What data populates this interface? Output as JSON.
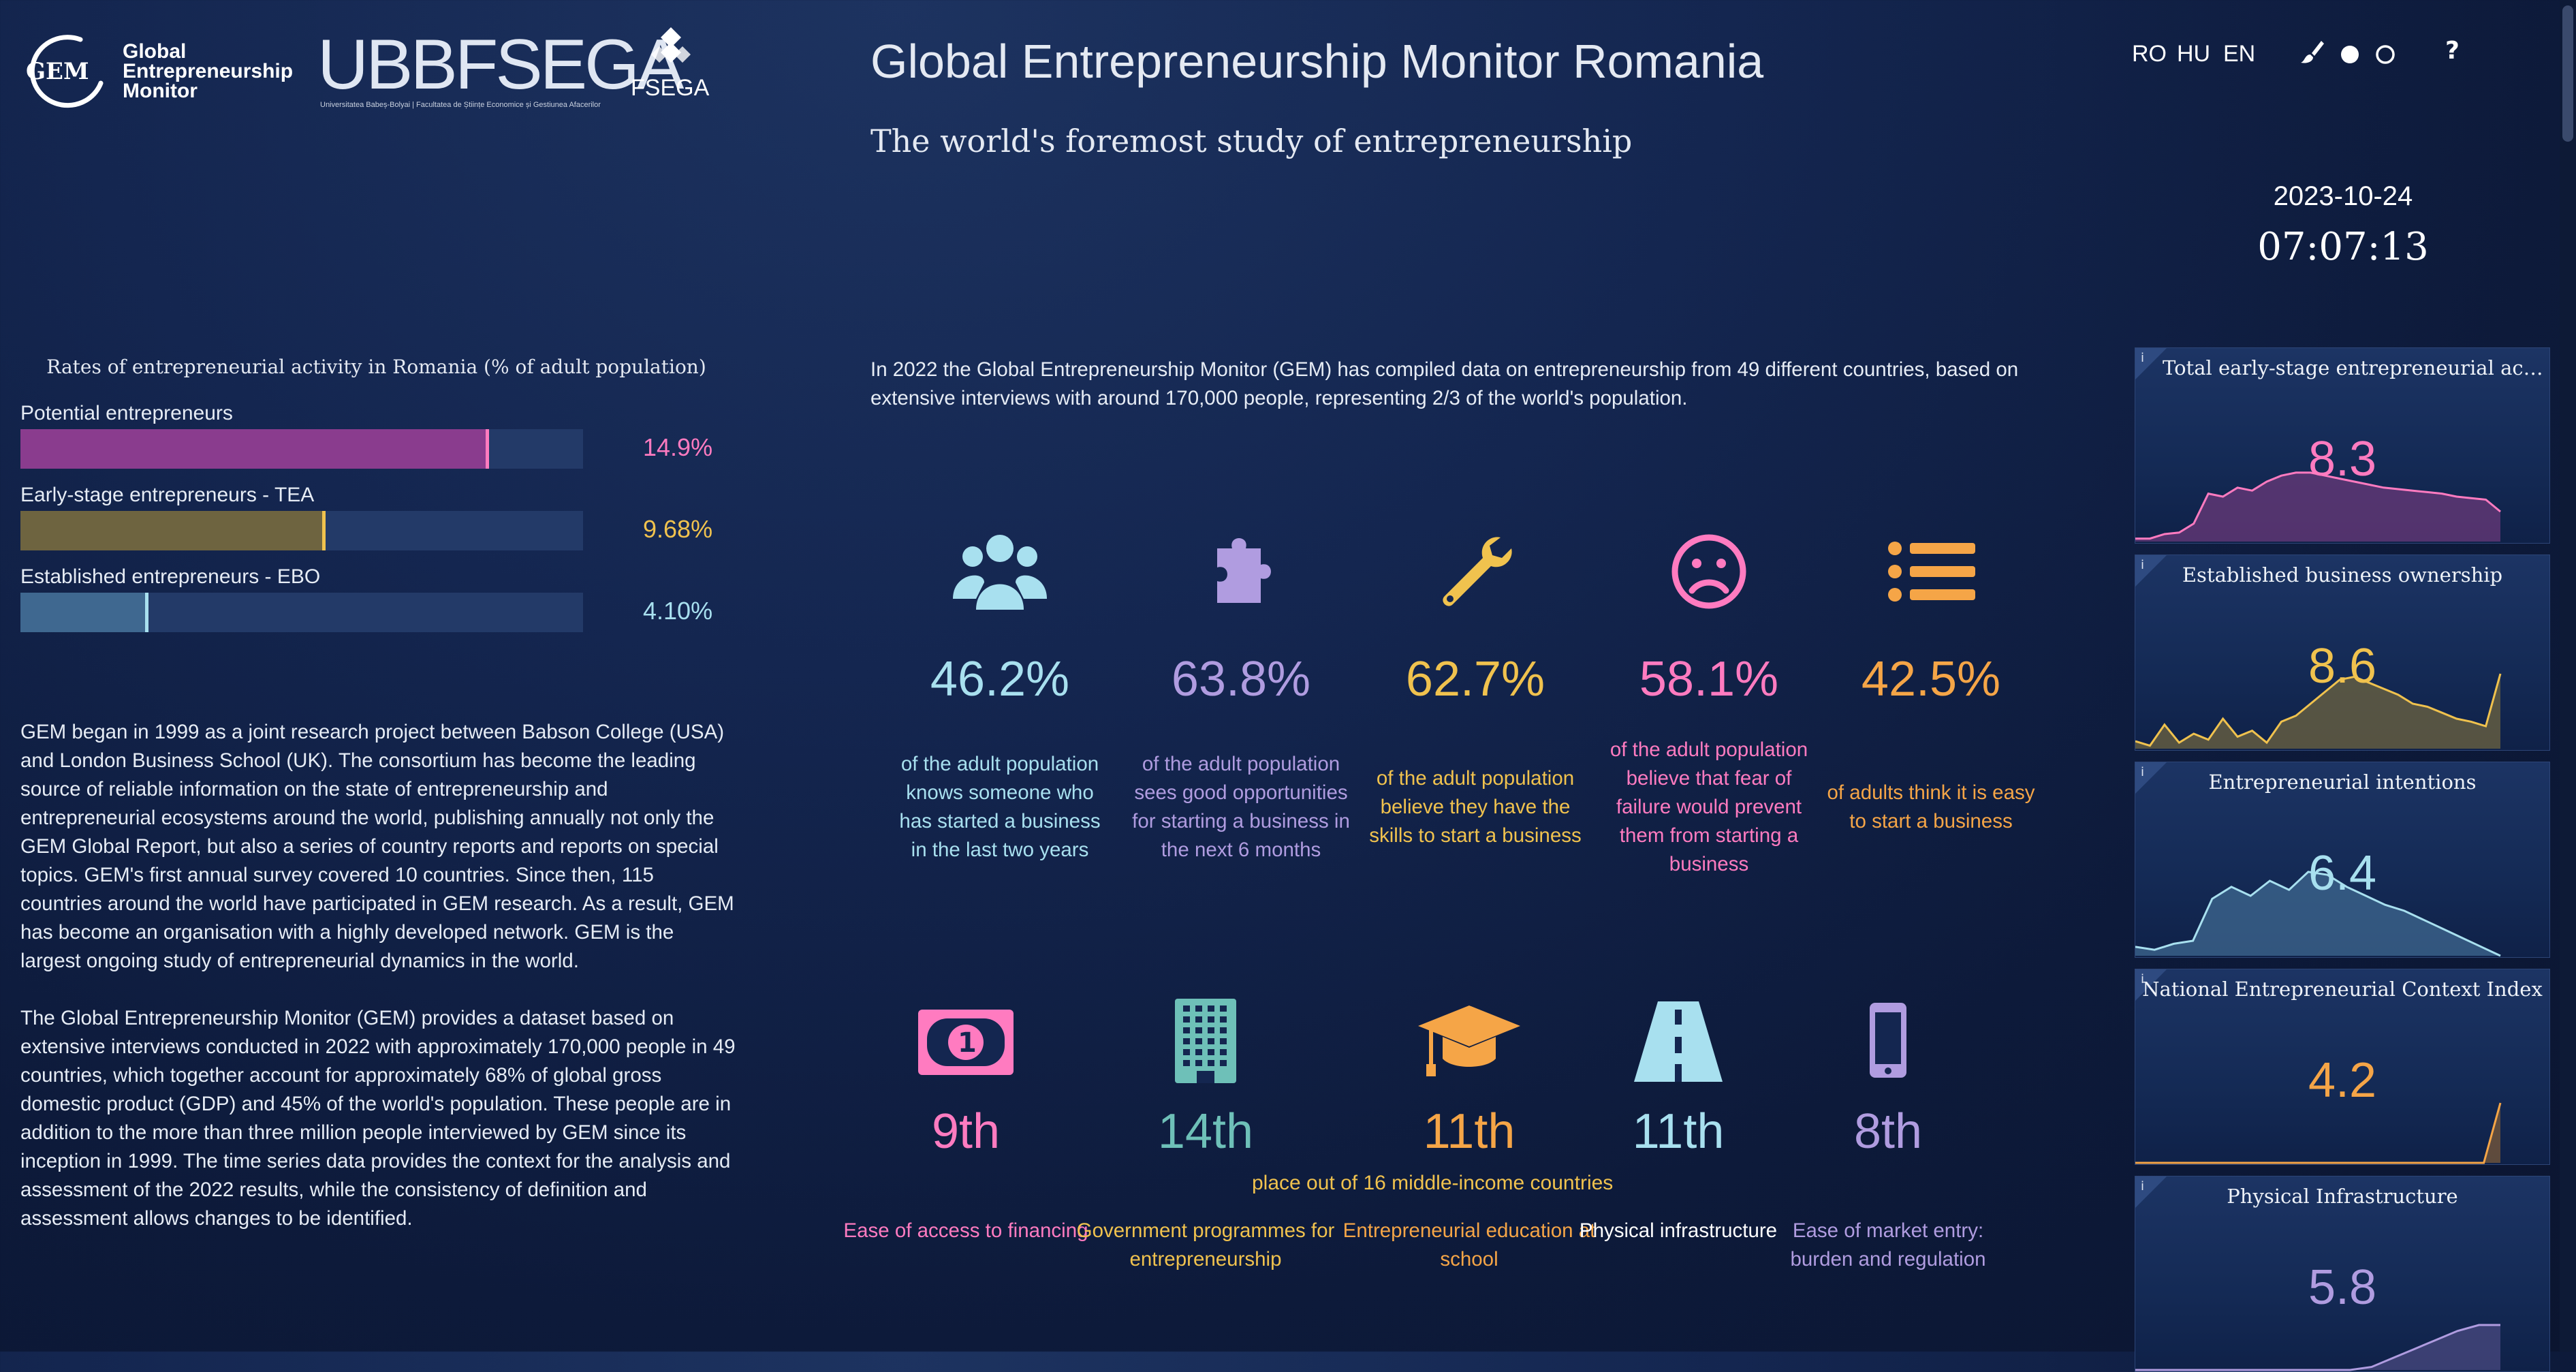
{
  "header": {
    "gem_logo_text": [
      "Global",
      "Entrepreneurship",
      "Monitor"
    ],
    "gem_mark": "GEM",
    "ubb_logo_main": "UBBFSEGA",
    "ubb_logo_sub": "Universitatea Babeș-Bolyai | Facultatea de Științe Economice și Gestiunea Afacerilor",
    "fsega_mark": "FSEGA",
    "title": "Global Entrepreneurship Monitor Romania",
    "subtitle": "The world's foremost study of entrepreneurship",
    "languages": [
      "RO",
      "HU",
      "EN"
    ],
    "tools": [
      "brush-icon",
      "dark-theme-icon",
      "light-theme-icon",
      "help-icon"
    ],
    "help_label": "?",
    "date": "2023-10-24",
    "time": "07:07:13"
  },
  "rates": {
    "title": "Rates of entrepreneurial activity in Romania (% of adult population)",
    "bars": [
      {
        "label": "Potential entrepreneurs",
        "value_text": "14.9%",
        "fraction": 0.83,
        "color": "#8a3c8e",
        "marker": "#ff7bc0",
        "text_color": "#ff7bc0"
      },
      {
        "label": "Early-stage entrepreneurs - TEA",
        "value_text": "9.68%",
        "fraction": 0.54,
        "color": "#6e6440",
        "marker": "#f0c24e",
        "text_color": "#f0c24e"
      },
      {
        "label": "Established entrepreneurs - EBO",
        "value_text": "4.10%",
        "fraction": 0.225,
        "color": "#3f6890",
        "marker": "#a8e0ef",
        "text_color": "#a8e0ef"
      }
    ]
  },
  "about": {
    "p1": "GEM began in 1999 as a joint research project between Babson College (USA) and London Business School (UK). The consortium has become the leading source of reliable information on the state of entrepreneurship and entrepreneurial ecosystems around the world, publishing annually not only the GEM Global Report, but also a series of country reports and reports on special topics. GEM's first annual survey covered 10 countries. Since then, 115 countries around the world have participated in GEM research. As a result, GEM has become an organisation with a highly developed network. GEM is the largest ongoing study of entrepreneurial dynamics in the world.",
    "p2": "The Global Entrepreneurship Monitor (GEM) provides a dataset based on extensive interviews conducted in 2022 with approximately 170,000 people in 49 countries, which together account for approximately 68% of global gross domestic product (GDP) and 45% of the world's population. These people are in addition to the more than three million people interviewed by GEM since its inception in 1999. The time series data provides the context for the analysis and assessment of the 2022 results, while the consistency of definition and assessment allows changes to be identified."
  },
  "intro": "In 2022 the Global Entrepreneurship Monitor (GEM) has compiled data on entrepreneurship from 49 different countries, based on extensive interviews with around 170,000 people, representing 2/3 of the world's population.",
  "stats": [
    {
      "icon": "users-icon",
      "value": "46.2%",
      "desc": "of the adult population knows someone who has started a business in the last two years",
      "color": "#a8e0ef"
    },
    {
      "icon": "puzzle-icon",
      "value": "63.8%",
      "desc": "of the adult population sees good opportunities for starting a business in the next 6 months",
      "color": "#b09ce0"
    },
    {
      "icon": "wrench-icon",
      "value": "62.7%",
      "desc": "of the adult population believe they have the skills to start a business",
      "color": "#f0c24e"
    },
    {
      "icon": "sad-face-icon",
      "value": "58.1%",
      "desc": "of the adult population believe that fear of failure would prevent them from starting a business",
      "color": "#ff7bc0"
    },
    {
      "icon": "list-icon",
      "value": "42.5%",
      "desc": "of adults think it is easy to start a business",
      "color": "#f5a547"
    }
  ],
  "ranks": {
    "note": "place out of 16 middle-income countries",
    "items": [
      {
        "icon": "money-icon",
        "value": "9th",
        "desc": "Ease of access to financing",
        "color": "#ff7bc0",
        "desc_color": "#ff7bc0"
      },
      {
        "icon": "building-icon",
        "value": "14th",
        "desc": "Government programmes for entrepreneurship",
        "color": "#6ec0b8",
        "desc_color": "#f0c24e"
      },
      {
        "icon": "graduation-cap-icon",
        "value": "11th",
        "desc": "Entrepreneurial education at school",
        "color": "#f5a547",
        "desc_color": "#f5a547"
      },
      {
        "icon": "road-icon",
        "value": "11th",
        "desc": "Physical infrastructure",
        "color": "#a8e0ef",
        "desc_color": "#ffffff"
      },
      {
        "icon": "phone-icon",
        "value": "8th",
        "desc": "Ease of market entry: burden and regulation",
        "color": "#b09ce0",
        "desc_color": "#b09ce0"
      }
    ]
  },
  "cards": [
    {
      "title": "Total early-stage entrepreneurial activi...",
      "value": "8.3",
      "color": "#ff7bc0",
      "fill": "#6a3a7a",
      "info": "i",
      "spark": [
        0.02,
        0.02,
        0.05,
        0.06,
        0.12,
        0.32,
        0.3,
        0.36,
        0.34,
        0.4,
        0.44,
        0.46,
        0.46,
        0.44,
        0.42,
        0.4,
        0.38,
        0.36,
        0.35,
        0.34,
        0.33,
        0.32,
        0.3,
        0.29,
        0.28,
        0.2
      ]
    },
    {
      "title": "Established business ownership",
      "value": "8.6",
      "color": "#f0c24e",
      "fill": "#6e6440",
      "info": "i",
      "spark": [
        0.05,
        0.02,
        0.16,
        0.04,
        0.1,
        0.06,
        0.2,
        0.08,
        0.12,
        0.04,
        0.18,
        0.22,
        0.3,
        0.38,
        0.46,
        0.48,
        0.44,
        0.4,
        0.36,
        0.3,
        0.28,
        0.24,
        0.2,
        0.18,
        0.15,
        0.5
      ]
    },
    {
      "title": "Entrepreneurial intentions",
      "value": "6.4",
      "color": "#a8e0ef",
      "fill": "#3f6890",
      "info": "i",
      "spark": [
        0.06,
        0.04,
        0.08,
        0.1,
        0.38,
        0.46,
        0.4,
        0.5,
        0.44,
        0.56,
        0.54,
        0.46,
        0.4,
        0.34,
        0.3,
        0.24,
        0.18,
        0.12,
        0.06,
        0.0
      ]
    },
    {
      "title": "National Entrepreneurial Context Index",
      "value": "4.2",
      "color": "#f5a547",
      "fill": "#7a5a3a",
      "info": "i",
      "spark": [
        0,
        0,
        0,
        0,
        0,
        0,
        0,
        0,
        0,
        0,
        0,
        0,
        0,
        0,
        0,
        0,
        0,
        0,
        0,
        0,
        0,
        0.0,
        0.4
      ]
    },
    {
      "title": "Physical Infrastructure",
      "value": "5.8",
      "color": "#b09ce0",
      "fill": "#4a4a80",
      "info": "i",
      "spark": [
        0,
        0,
        0,
        0,
        0,
        0,
        0,
        0,
        0,
        0,
        0,
        0.02,
        0.08,
        0.14,
        0.2,
        0.26,
        0.3,
        0.3
      ]
    }
  ]
}
